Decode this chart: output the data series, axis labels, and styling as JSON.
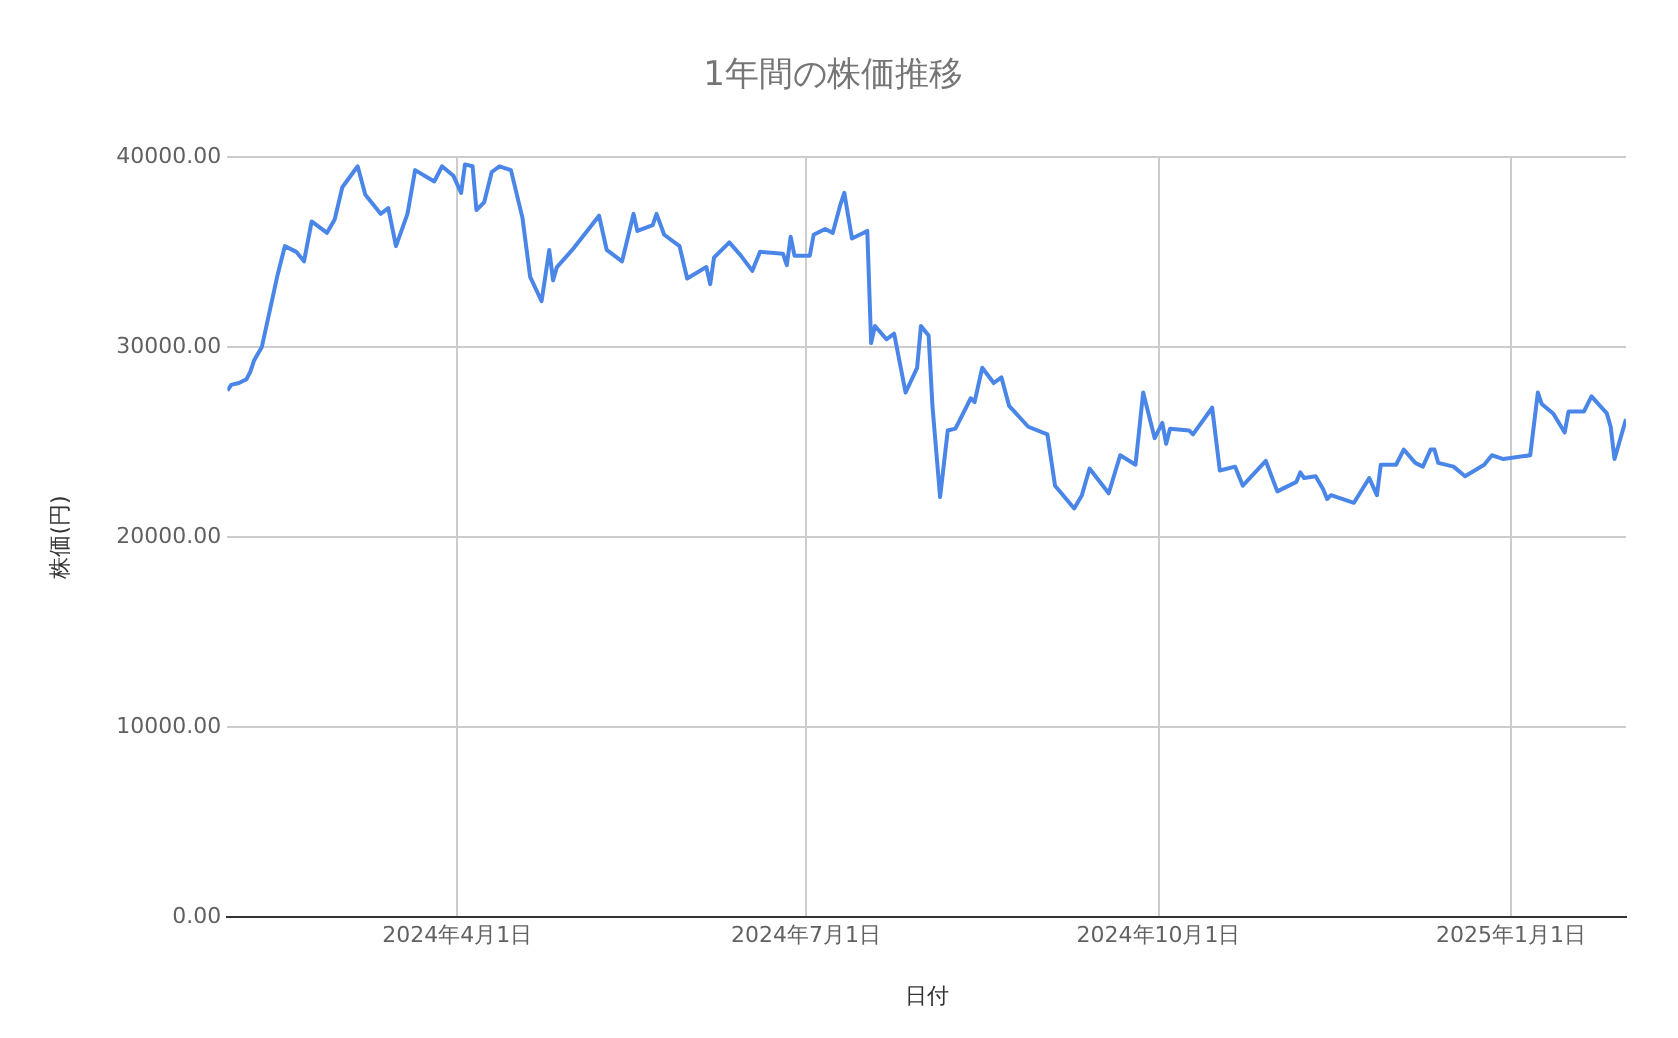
{
  "chart_data": {
    "type": "line",
    "title": "1年間の株価推移",
    "xlabel": "日付",
    "ylabel": "株価(円)",
    "xlim": [
      "2024-02-01",
      "2025-01-31"
    ],
    "xticks": [
      {
        "value": "2024-04-01",
        "label": "2024年4月1日"
      },
      {
        "value": "2024-07-01",
        "label": "2024年7月1日"
      },
      {
        "value": "2024-10-01",
        "label": "2024年10月1日"
      },
      {
        "value": "2025-01-01",
        "label": "2025年1月1日"
      }
    ],
    "ylim": [
      0,
      40000
    ],
    "yticks": [
      {
        "value": 0,
        "label": "0.00"
      },
      {
        "value": 10000,
        "label": "10000.00"
      },
      {
        "value": 20000,
        "label": "20000.00"
      },
      {
        "value": 30000,
        "label": "30000.00"
      },
      {
        "value": 40000,
        "label": "40000.00"
      }
    ],
    "grid": true,
    "legend": false,
    "marker": "none",
    "line_style": "solid",
    "x": [
      "2024-02-01",
      "2024-02-02",
      "2024-02-04",
      "2024-02-06",
      "2024-02-07",
      "2024-02-08",
      "2024-02-10",
      "2024-02-14",
      "2024-02-16",
      "2024-02-19",
      "2024-02-21",
      "2024-02-23",
      "2024-02-27",
      "2024-02-29",
      "2024-03-02",
      "2024-03-06",
      "2024-03-08",
      "2024-03-12",
      "2024-03-14",
      "2024-03-16",
      "2024-03-19",
      "2024-03-21",
      "2024-03-26",
      "2024-03-28",
      "2024-03-31",
      "2024-04-02",
      "2024-04-03",
      "2024-04-05",
      "2024-04-06",
      "2024-04-08",
      "2024-04-10",
      "2024-04-12",
      "2024-04-15",
      "2024-04-18",
      "2024-04-20",
      "2024-04-23",
      "2024-04-25",
      "2024-04-26",
      "2024-04-27",
      "2024-05-01",
      "2024-05-08",
      "2024-05-10",
      "2024-05-14",
      "2024-05-17",
      "2024-05-18",
      "2024-05-22",
      "2024-05-23",
      "2024-05-25",
      "2024-05-29",
      "2024-05-31",
      "2024-06-05",
      "2024-06-06",
      "2024-06-07",
      "2024-06-11",
      "2024-06-14",
      "2024-06-17",
      "2024-06-19",
      "2024-06-25",
      "2024-06-26",
      "2024-06-27",
      "2024-06-28",
      "2024-07-02",
      "2024-07-03",
      "2024-07-06",
      "2024-07-08",
      "2024-07-10",
      "2024-07-11",
      "2024-07-13",
      "2024-07-17",
      "2024-07-18",
      "2024-07-19",
      "2024-07-22",
      "2024-07-24",
      "2024-07-27",
      "2024-07-30",
      "2024-07-31",
      "2024-08-02",
      "2024-08-03",
      "2024-08-05",
      "2024-08-07",
      "2024-08-09",
      "2024-08-13",
      "2024-08-14",
      "2024-08-16",
      "2024-08-19",
      "2024-08-21",
      "2024-08-23",
      "2024-08-28",
      "2024-09-02",
      "2024-09-04",
      "2024-09-09",
      "2024-09-11",
      "2024-09-13",
      "2024-09-18",
      "2024-09-21",
      "2024-09-25",
      "2024-09-27",
      "2024-09-30",
      "2024-10-02",
      "2024-10-03",
      "2024-10-04",
      "2024-10-09",
      "2024-10-10",
      "2024-10-15",
      "2024-10-17",
      "2024-10-21",
      "2024-10-23",
      "2024-10-29",
      "2024-11-01",
      "2024-11-06",
      "2024-11-07",
      "2024-11-08",
      "2024-11-11",
      "2024-11-13",
      "2024-11-14",
      "2024-11-15",
      "2024-11-21",
      "2024-11-25",
      "2024-11-27",
      "2024-11-28",
      "2024-12-02",
      "2024-12-04",
      "2024-12-07",
      "2024-12-09",
      "2024-12-11",
      "2024-12-12",
      "2024-12-13",
      "2024-12-17",
      "2024-12-20",
      "2024-12-25",
      "2024-12-27",
      "2024-12-30",
      "2025-01-06",
      "2025-01-08",
      "2025-01-09",
      "2025-01-12",
      "2025-01-15",
      "2025-01-16",
      "2025-01-20",
      "2025-01-22",
      "2025-01-26",
      "2025-01-27",
      "2025-01-28",
      "2025-01-31"
    ],
    "series": [
      {
        "color": "#4a86e8",
        "values": [
          27700,
          28000,
          28100,
          28300,
          28700,
          29300,
          30000,
          33700,
          35300,
          35000,
          34500,
          36600,
          36000,
          36700,
          38400,
          39500,
          38000,
          37000,
          37300,
          35300,
          37000,
          39300,
          38700,
          39500,
          39000,
          38100,
          39600,
          39500,
          37200,
          37600,
          39200,
          39500,
          39300,
          36800,
          33700,
          32400,
          35100,
          33500,
          34200,
          35100,
          36900,
          35100,
          34500,
          37000,
          36100,
          36400,
          37000,
          35900,
          35300,
          33600,
          34200,
          33300,
          34700,
          35500,
          34800,
          34000,
          35000,
          34900,
          34300,
          35800,
          34800,
          34800,
          35900,
          36200,
          36000,
          37500,
          38100,
          35700,
          36100,
          30200,
          31100,
          30400,
          30700,
          27600,
          28900,
          31100,
          30600,
          26900,
          22100,
          25600,
          25700,
          27300,
          27100,
          28900,
          28100,
          28400,
          26900,
          25800,
          25400,
          22700,
          21500,
          22200,
          23600,
          22300,
          24300,
          23800,
          27600,
          25200,
          26000,
          24900,
          25700,
          25600,
          25400,
          26800,
          23500,
          23700,
          22700,
          24000,
          22400,
          22900,
          23400,
          23100,
          23200,
          22500,
          22000,
          22200,
          21800,
          23100,
          22200,
          23800,
          23800,
          24600,
          23900,
          23700,
          24600,
          24600,
          23900,
          23700,
          23200,
          23800,
          24300,
          24100,
          24300,
          27600,
          27000,
          26500,
          25500,
          26600,
          26600,
          27400,
          26500,
          25800,
          24100,
          26200
        ]
      }
    ]
  }
}
